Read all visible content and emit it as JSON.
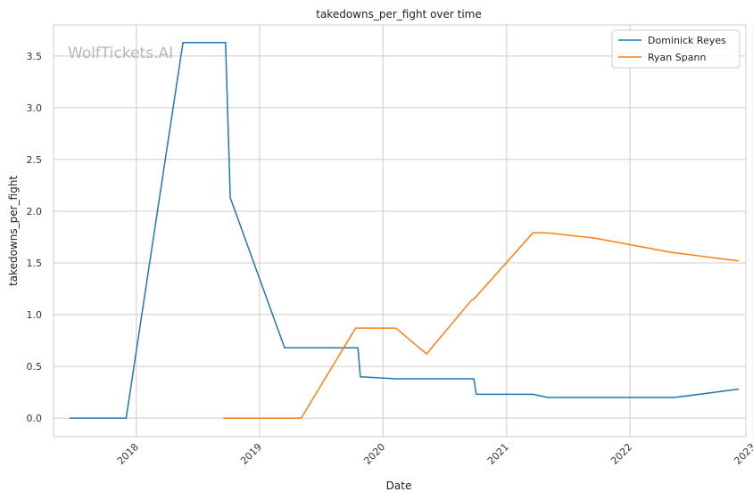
{
  "watermark": "WolfTickets.AI",
  "chart_data": {
    "type": "line",
    "title": "takedowns_per_fight over time",
    "xlabel": "Date",
    "ylabel": "takedowns_per_fight",
    "x_ticks": [
      "2018",
      "2019",
      "2020",
      "2021",
      "2022",
      "2023"
    ],
    "y_ticks": [
      "0.0",
      "0.5",
      "1.0",
      "1.5",
      "2.0",
      "2.5",
      "3.0",
      "3.5"
    ],
    "xlim": [
      "2017-05-01",
      "2022-12-10"
    ],
    "ylim": [
      -0.18,
      3.8
    ],
    "grid": true,
    "legend_position": "top-right",
    "series": [
      {
        "name": "Dominick Reyes",
        "color": "#1f77b4",
        "points": [
          [
            "2017-06-17",
            0.0
          ],
          [
            "2017-12-02",
            0.0
          ],
          [
            "2018-05-19",
            3.63
          ],
          [
            "2018-09-22",
            3.63
          ],
          [
            "2018-10-06",
            2.13
          ],
          [
            "2019-03-16",
            0.68
          ],
          [
            "2019-10-19",
            0.68
          ],
          [
            "2019-10-26",
            0.4
          ],
          [
            "2020-02-08",
            0.38
          ],
          [
            "2020-09-26",
            0.38
          ],
          [
            "2020-10-03",
            0.23
          ],
          [
            "2021-03-20",
            0.23
          ],
          [
            "2021-05-01",
            0.2
          ],
          [
            "2022-05-14",
            0.2
          ],
          [
            "2022-11-19",
            0.28
          ]
        ]
      },
      {
        "name": "Ryan Spann",
        "color": "#ff7f0e",
        "points": [
          [
            "2018-09-15",
            0.0
          ],
          [
            "2019-05-04",
            0.0
          ],
          [
            "2019-10-12",
            0.87
          ],
          [
            "2020-02-08",
            0.87
          ],
          [
            "2020-05-09",
            0.62
          ],
          [
            "2020-09-19",
            1.14
          ],
          [
            "2020-09-26",
            1.15
          ],
          [
            "2021-03-20",
            1.79
          ],
          [
            "2021-05-01",
            1.79
          ],
          [
            "2021-09-18",
            1.74
          ],
          [
            "2022-05-07",
            1.6
          ],
          [
            "2022-11-19",
            1.52
          ]
        ]
      }
    ]
  }
}
